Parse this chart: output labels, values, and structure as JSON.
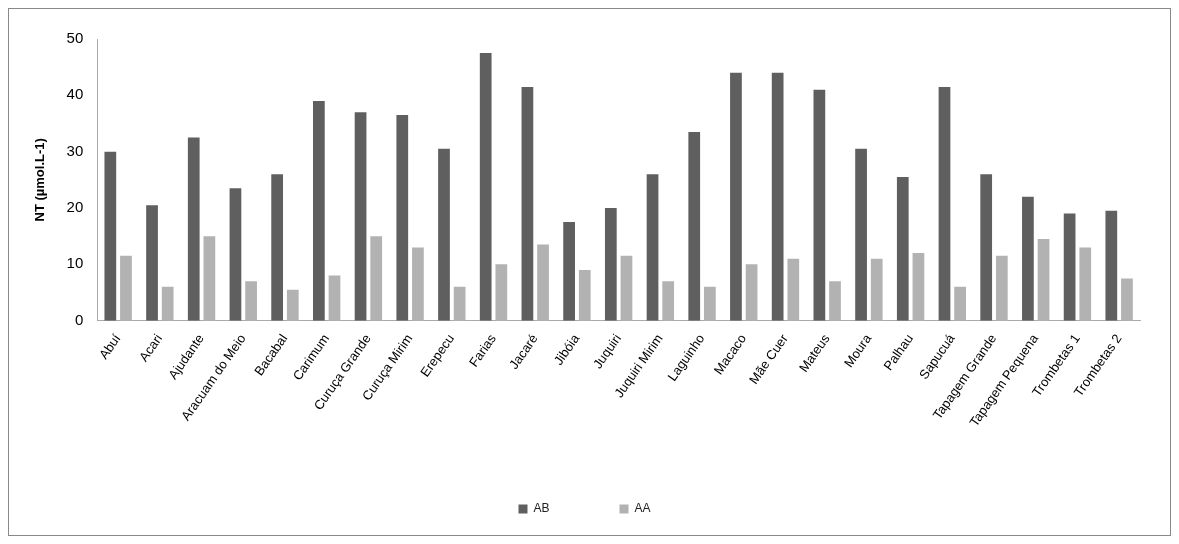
{
  "chart_data": {
    "type": "bar",
    "ylabel": "NT (µmol.L-1)",
    "categories": [
      "Abuí",
      "Acari",
      "Ajudante",
      "Aracuam do Meio",
      "Bacabal",
      "Carimum",
      "Curuça Grande",
      "Curuça Mirim",
      "Erepecu",
      "Farias",
      "Jacaré",
      "Jibóia",
      "Juquiri",
      "Juquiri Mirim",
      "Laguinho",
      "Macaco",
      "Mãe Cuer",
      "Mateus",
      "Moura",
      "Palhau",
      "Sapucuá",
      "Tapagem Grande",
      "Tapagem Pequena",
      "Trombetas 1",
      "Trombetas 2"
    ],
    "series": [
      {
        "name": "AB",
        "color": "#5f5f5f",
        "values": [
          30,
          20.5,
          32.5,
          23.5,
          26,
          39,
          37,
          36.5,
          30.5,
          47.5,
          41.5,
          17.5,
          20,
          26,
          33.5,
          44,
          44,
          41,
          30.5,
          25.5,
          41.5,
          26,
          22,
          19,
          19.5
        ]
      },
      {
        "name": "AA",
        "color": "#b2b2b2",
        "values": [
          11.5,
          6,
          15,
          7,
          5.5,
          8,
          15,
          13,
          6,
          10,
          13.5,
          9,
          11.5,
          7,
          6,
          10,
          11,
          7,
          11,
          12,
          6,
          11.5,
          14.5,
          13,
          7.5
        ]
      }
    ],
    "ylim": [
      0,
      50
    ],
    "yticks": [
      0,
      10,
      20,
      30,
      40,
      50
    ],
    "legend": "bottom"
  }
}
